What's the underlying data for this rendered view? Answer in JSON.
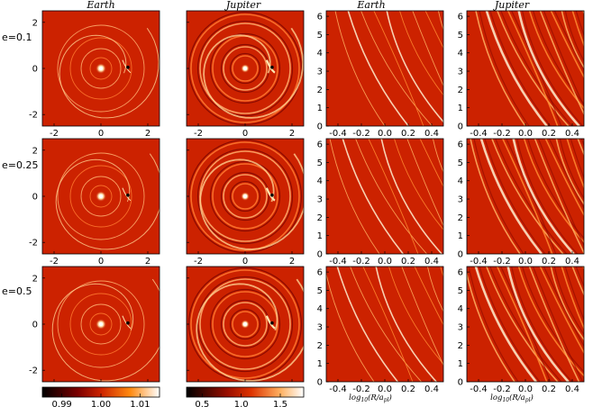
{
  "columns": [
    "Earth",
    "Jupiter",
    "Earth",
    "Jupiter"
  ],
  "rows": [
    "e=0.1",
    "e=0.25",
    "e=0.5"
  ],
  "colors": {
    "background": "#cc2200",
    "bright": "#ffd9a0",
    "dark": "#000000"
  },
  "chart_data": {
    "type": "heatmap",
    "grid": "3 rows x 4 columns",
    "disk_panels": {
      "xlim": [
        -2.5,
        2.5
      ],
      "ylim": [
        -2.5,
        2.5
      ],
      "xticks": [
        "-2",
        "0",
        "2"
      ],
      "yticks": [
        "-2",
        "0",
        "2"
      ]
    },
    "spacetime_panels": {
      "xlabel": "log10(R/a_pl)",
      "xticks": [
        "-0.4",
        "-0.2",
        "0.0",
        "0.2",
        "0.4"
      ],
      "yticks": [
        "0",
        "1",
        "2",
        "3",
        "4",
        "5",
        "6"
      ],
      "xlim": [
        -0.5,
        0.5
      ],
      "ylim": [
        0,
        6.3
      ]
    },
    "colorbars": [
      {
        "column": "Earth",
        "ticks": [
          "0.99",
          "1.00",
          "1.01"
        ],
        "range": [
          0.985,
          1.015
        ]
      },
      {
        "column": "Jupiter",
        "ticks": [
          "0.5",
          "1.0",
          "1.5"
        ],
        "range": [
          0.3,
          1.8
        ]
      }
    ]
  }
}
